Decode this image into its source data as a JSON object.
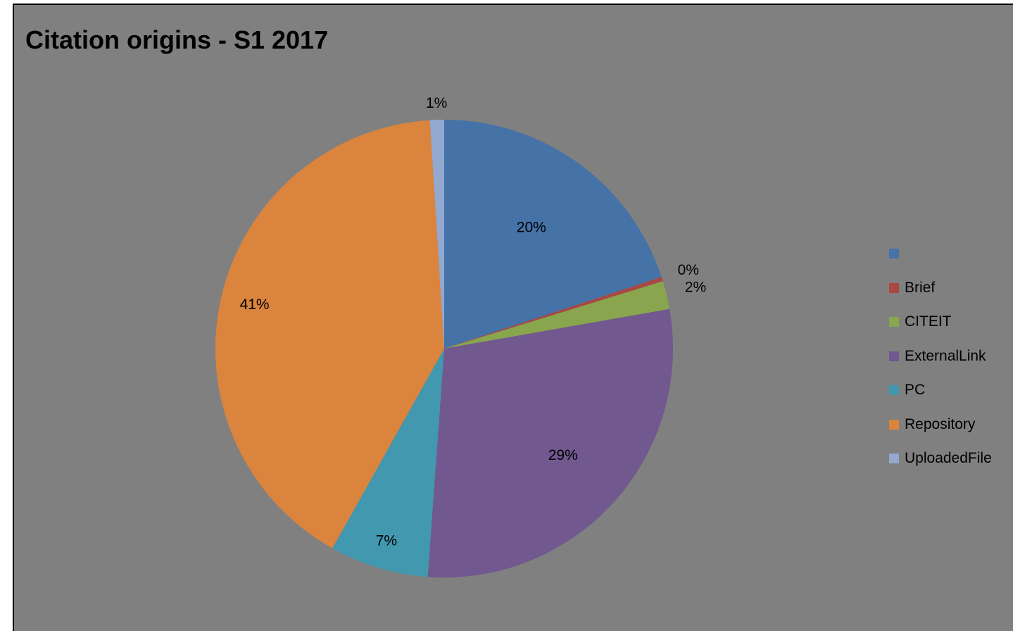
{
  "chart_data": {
    "type": "pie",
    "title": "Citation origins - S1 2017",
    "slices": [
      {
        "name": "",
        "value": 20,
        "label": "20%",
        "color": "#4572A7"
      },
      {
        "name": "Brief",
        "value": 0.3,
        "label": "0%",
        "color": "#AA4643"
      },
      {
        "name": "CITEIT",
        "value": 2,
        "label": "2%",
        "color": "#89A54E"
      },
      {
        "name": "ExternalLink",
        "value": 29,
        "label": "29%",
        "color": "#71588F"
      },
      {
        "name": "PC",
        "value": 7,
        "label": "7%",
        "color": "#4198AF"
      },
      {
        "name": "Repository",
        "value": 41,
        "label": "41%",
        "color": "#DB843D"
      },
      {
        "name": "UploadedFile",
        "value": 1,
        "label": "1%",
        "color": "#93A9CF"
      }
    ],
    "legend_position": "right",
    "background": "#808080"
  }
}
